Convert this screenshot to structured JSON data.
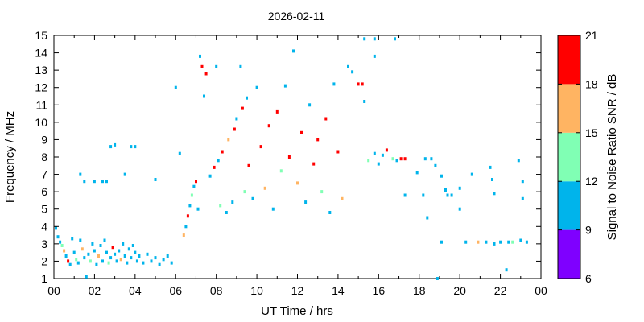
{
  "chart_data": {
    "type": "scatter",
    "title": "2026-02-11",
    "xlabel": "UT Time / hrs",
    "ylabel": "Frequency / MHz",
    "xlim": [
      0,
      24
    ],
    "ylim": [
      1,
      15
    ],
    "x_ticks": [
      "00",
      "02",
      "04",
      "06",
      "08",
      "10",
      "12",
      "14",
      "16",
      "18",
      "20",
      "22",
      "00"
    ],
    "y_ticks": [
      "1",
      "2",
      "3",
      "4",
      "5",
      "6",
      "7",
      "8",
      "9",
      "10",
      "11",
      "12",
      "13",
      "14",
      "15"
    ],
    "colorbar": {
      "label": "Signal to Noise Ratio SNR / dB",
      "ticks": [
        "6",
        "9",
        "12",
        "15",
        "18",
        "21"
      ],
      "range": [
        6,
        21
      ],
      "bands": [
        {
          "from": 6,
          "to": 9,
          "color": "#7f00ff"
        },
        {
          "from": 9,
          "to": 12,
          "color": "#00b4eb"
        },
        {
          "from": 12,
          "to": 15,
          "color": "#80ffb4"
        },
        {
          "from": 15,
          "to": 18,
          "color": "#ffb462"
        },
        {
          "from": 18,
          "to": 21,
          "color": "#ff0000"
        }
      ]
    },
    "points": [
      [
        0.1,
        3.9,
        10
      ],
      [
        0.2,
        3.4,
        11
      ],
      [
        0.3,
        3.1,
        10
      ],
      [
        0.4,
        2.9,
        13
      ],
      [
        0.5,
        2.6,
        16
      ],
      [
        0.6,
        2.3,
        10
      ],
      [
        0.7,
        2.0,
        19
      ],
      [
        0.8,
        1.8,
        10
      ],
      [
        0.9,
        3.3,
        11
      ],
      [
        1.0,
        2.5,
        10
      ],
      [
        1.1,
        2.1,
        13
      ],
      [
        1.2,
        1.9,
        10
      ],
      [
        1.3,
        3.2,
        10
      ],
      [
        1.4,
        2.7,
        16
      ],
      [
        1.5,
        2.2,
        10
      ],
      [
        1.6,
        1.1,
        10
      ],
      [
        1.7,
        2.4,
        10
      ],
      [
        1.8,
        2.0,
        13
      ],
      [
        1.9,
        3.0,
        10
      ],
      [
        2.0,
        2.6,
        10
      ],
      [
        2.1,
        1.8,
        10
      ],
      [
        2.2,
        2.3,
        16
      ],
      [
        2.3,
        2.9,
        10
      ],
      [
        2.4,
        2.0,
        10
      ],
      [
        2.5,
        3.2,
        10
      ],
      [
        2.6,
        2.5,
        10
      ],
      [
        2.7,
        1.9,
        13
      ],
      [
        2.8,
        2.2,
        10
      ],
      [
        2.9,
        2.8,
        19
      ],
      [
        3.0,
        2.4,
        10
      ],
      [
        3.1,
        2.0,
        10
      ],
      [
        3.2,
        2.6,
        10
      ],
      [
        3.3,
        2.1,
        16
      ],
      [
        3.4,
        3.0,
        10
      ],
      [
        3.5,
        2.3,
        10
      ],
      [
        3.6,
        1.9,
        10
      ],
      [
        3.7,
        2.7,
        10
      ],
      [
        3.8,
        2.2,
        10
      ],
      [
        3.9,
        2.9,
        10
      ],
      [
        4.0,
        2.5,
        10
      ],
      [
        4.1,
        2.0,
        10
      ],
      [
        4.2,
        2.3,
        10
      ],
      [
        4.4,
        1.9,
        10
      ],
      [
        4.6,
        2.4,
        10
      ],
      [
        4.8,
        2.0,
        10
      ],
      [
        5.0,
        2.2,
        10
      ],
      [
        5.2,
        1.8,
        10
      ],
      [
        5.4,
        2.1,
        10
      ],
      [
        5.6,
        2.3,
        10
      ],
      [
        5.8,
        1.9,
        10
      ],
      [
        1.3,
        7.0,
        10
      ],
      [
        1.5,
        6.6,
        10
      ],
      [
        2.0,
        6.6,
        10
      ],
      [
        2.4,
        6.6,
        10
      ],
      [
        2.6,
        6.6,
        10
      ],
      [
        2.8,
        8.6,
        10
      ],
      [
        3.0,
        8.7,
        10
      ],
      [
        3.5,
        7.0,
        10
      ],
      [
        3.8,
        8.6,
        10
      ],
      [
        4.0,
        8.6,
        10
      ],
      [
        5.0,
        6.7,
        10
      ],
      [
        6.0,
        12.0,
        10
      ],
      [
        6.2,
        8.2,
        10
      ],
      [
        6.4,
        3.5,
        16
      ],
      [
        6.5,
        4.0,
        10
      ],
      [
        6.6,
        4.6,
        19
      ],
      [
        6.7,
        5.2,
        10
      ],
      [
        6.8,
        5.8,
        13
      ],
      [
        6.9,
        6.3,
        10
      ],
      [
        7.0,
        6.6,
        19
      ],
      [
        7.1,
        5.0,
        10
      ],
      [
        7.2,
        13.8,
        10
      ],
      [
        7.3,
        13.2,
        19
      ],
      [
        7.4,
        11.5,
        10
      ],
      [
        7.5,
        12.8,
        19
      ],
      [
        7.7,
        6.9,
        10
      ],
      [
        7.9,
        7.4,
        19
      ],
      [
        8.0,
        13.2,
        10
      ],
      [
        8.1,
        7.8,
        10
      ],
      [
        8.2,
        5.2,
        13
      ],
      [
        8.3,
        8.3,
        19
      ],
      [
        8.5,
        4.8,
        10
      ],
      [
        8.6,
        9.0,
        16
      ],
      [
        8.8,
        5.4,
        10
      ],
      [
        8.9,
        9.6,
        19
      ],
      [
        9.0,
        10.2,
        10
      ],
      [
        9.2,
        13.2,
        10
      ],
      [
        9.3,
        10.8,
        19
      ],
      [
        9.4,
        6.0,
        13
      ],
      [
        9.5,
        11.4,
        10
      ],
      [
        9.6,
        7.5,
        19
      ],
      [
        9.8,
        5.6,
        10
      ],
      [
        10.0,
        12.0,
        10
      ],
      [
        10.2,
        8.6,
        19
      ],
      [
        10.4,
        6.2,
        16
      ],
      [
        10.6,
        9.8,
        19
      ],
      [
        10.8,
        5.0,
        10
      ],
      [
        11.0,
        10.6,
        19
      ],
      [
        11.2,
        7.2,
        13
      ],
      [
        11.4,
        12.1,
        10
      ],
      [
        11.6,
        8.0,
        19
      ],
      [
        11.8,
        14.1,
        10
      ],
      [
        12.0,
        6.5,
        16
      ],
      [
        12.2,
        9.4,
        19
      ],
      [
        12.4,
        5.4,
        10
      ],
      [
        12.6,
        11.0,
        10
      ],
      [
        12.8,
        7.6,
        19
      ],
      [
        13.0,
        9.0,
        19
      ],
      [
        13.2,
        6.0,
        13
      ],
      [
        13.4,
        10.2,
        19
      ],
      [
        13.6,
        4.8,
        10
      ],
      [
        13.8,
        12.2,
        10
      ],
      [
        14.0,
        8.3,
        19
      ],
      [
        14.2,
        5.6,
        16
      ],
      [
        14.5,
        13.2,
        10
      ],
      [
        14.7,
        12.9,
        10
      ],
      [
        15.0,
        12.2,
        19
      ],
      [
        15.2,
        12.2,
        19
      ],
      [
        15.3,
        11.2,
        10
      ],
      [
        15.3,
        14.8,
        10
      ],
      [
        15.5,
        7.8,
        13
      ],
      [
        15.8,
        8.2,
        10
      ],
      [
        15.8,
        13.8,
        10
      ],
      [
        15.8,
        14.8,
        10
      ],
      [
        16.0,
        7.6,
        10
      ],
      [
        16.2,
        8.1,
        10
      ],
      [
        16.4,
        8.4,
        19
      ],
      [
        16.7,
        7.9,
        13
      ],
      [
        16.8,
        14.8,
        10
      ],
      [
        16.9,
        7.8,
        10
      ],
      [
        17.1,
        7.9,
        19
      ],
      [
        17.3,
        7.9,
        19
      ],
      [
        17.3,
        5.8,
        10
      ],
      [
        17.9,
        7.1,
        10
      ],
      [
        18.2,
        5.8,
        10
      ],
      [
        18.3,
        7.9,
        10
      ],
      [
        18.4,
        4.5,
        10
      ],
      [
        18.6,
        7.9,
        10
      ],
      [
        18.8,
        7.5,
        10
      ],
      [
        18.9,
        1.0,
        10
      ],
      [
        19.1,
        6.9,
        10
      ],
      [
        19.1,
        3.1,
        10
      ],
      [
        19.3,
        6.1,
        10
      ],
      [
        19.4,
        5.8,
        10
      ],
      [
        19.6,
        5.8,
        10
      ],
      [
        20.0,
        6.2,
        10
      ],
      [
        20.0,
        5.0,
        10
      ],
      [
        20.3,
        3.1,
        10
      ],
      [
        20.6,
        7.0,
        10
      ],
      [
        20.9,
        3.1,
        16
      ],
      [
        21.3,
        3.1,
        10
      ],
      [
        21.5,
        7.4,
        10
      ],
      [
        21.6,
        6.7,
        10
      ],
      [
        21.7,
        5.9,
        10
      ],
      [
        21.7,
        3.0,
        10
      ],
      [
        22.0,
        3.1,
        10
      ],
      [
        22.3,
        1.5,
        10
      ],
      [
        22.4,
        3.1,
        10
      ],
      [
        22.6,
        3.1,
        13
      ],
      [
        22.9,
        7.8,
        10
      ],
      [
        23.0,
        3.2,
        10
      ],
      [
        23.1,
        6.6,
        10
      ],
      [
        23.1,
        5.6,
        10
      ],
      [
        23.3,
        3.1,
        10
      ]
    ]
  }
}
